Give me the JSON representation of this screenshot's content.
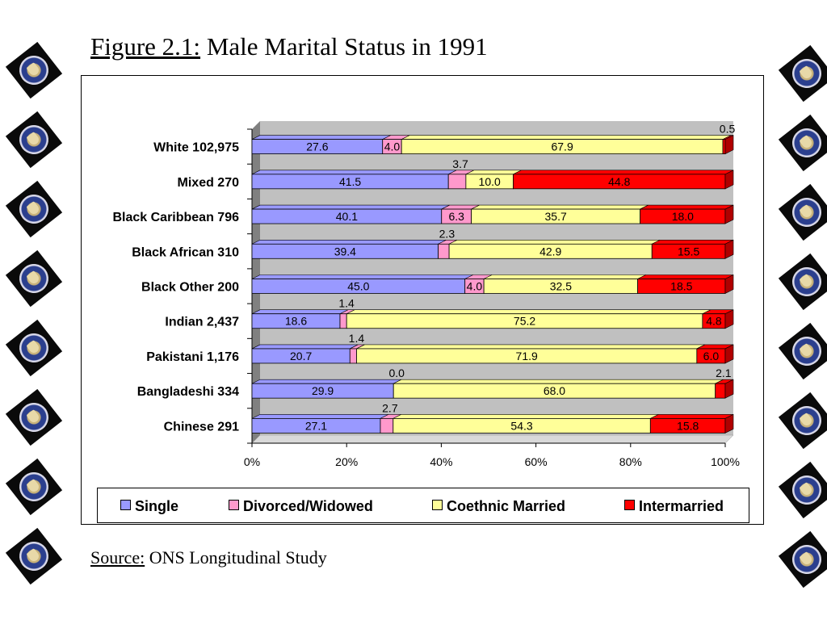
{
  "title": {
    "figure_label": "Figure 2.1:",
    "text": " Male Marital Status in 1991"
  },
  "source": {
    "label": "Source:",
    "text": " ONS Longitudinal Study"
  },
  "decoration": {
    "crest_icon": "university-crest-icon"
  },
  "colors": {
    "single": "#9999ff",
    "divorced": "#ff99cc",
    "coethnic": "#ffff99",
    "intermarried": "#ff0000",
    "plot_bg": "#c0c0c0",
    "wall": "#808080"
  },
  "chart_data": {
    "type": "bar",
    "orientation": "horizontal",
    "stacked": "percent",
    "title": "",
    "xlabel": "",
    "ylabel": "",
    "xlim": [
      0,
      100
    ],
    "x_ticks": [
      "0%",
      "20%",
      "40%",
      "60%",
      "80%",
      "100%"
    ],
    "grid": false,
    "legend_position": "bottom",
    "categories": [
      "White 102,975",
      "Mixed 270",
      "Black Caribbean 796",
      "Black African 310",
      "Black Other 200",
      "Indian 2,437",
      "Pakistani 1,176",
      "Bangladeshi 334",
      "Chinese 291"
    ],
    "series": [
      {
        "name": "Single",
        "values": [
          27.6,
          41.5,
          40.1,
          39.4,
          45.0,
          18.6,
          20.7,
          29.9,
          27.1
        ],
        "labels": [
          "27.6",
          "41.5",
          "40.1",
          "39.4",
          "45.0",
          "18.6",
          "20.7",
          "29.9",
          "27.1"
        ]
      },
      {
        "name": "Divorced/Widowed",
        "values": [
          4.0,
          3.7,
          6.3,
          2.3,
          4.0,
          1.4,
          1.4,
          0.0,
          2.7
        ],
        "labels": [
          "4.0",
          "3.7",
          "6.3",
          "2.3",
          "4.0",
          "1.4",
          "1.4",
          "0.0",
          "2.7"
        ]
      },
      {
        "name": "Coethnic Married",
        "values": [
          67.9,
          10.0,
          35.7,
          42.9,
          32.5,
          75.2,
          71.9,
          68.0,
          54.3
        ],
        "labels": [
          "67.9",
          "10.0",
          "35.7",
          "42.9",
          "32.5",
          "75.2",
          "71.9",
          "68.0",
          "54.3"
        ]
      },
      {
        "name": "Intermarried",
        "values": [
          0.5,
          44.8,
          18.0,
          15.5,
          18.5,
          4.8,
          6.0,
          2.1,
          15.8
        ],
        "labels": [
          "0.5",
          "44.8",
          "18.0",
          "15.5",
          "18.5",
          "4.8",
          "6.0",
          "2.1",
          "15.8"
        ]
      }
    ]
  }
}
